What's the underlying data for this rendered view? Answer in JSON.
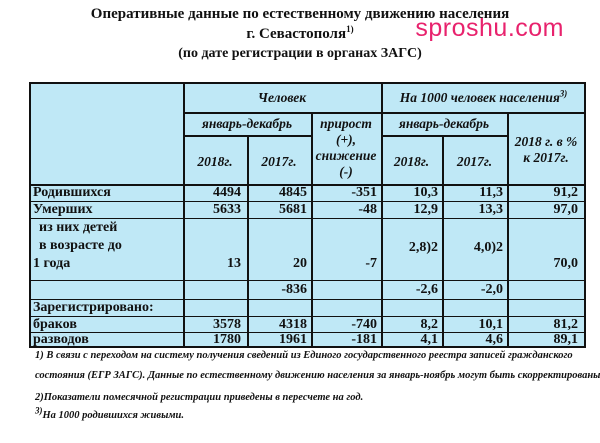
{
  "header": {
    "title_line1": "Оперативные данные по естественному движению населения",
    "title_line2": "г. Севастополя",
    "title_line2_sup": "1)",
    "title_line3": "(по дате регистрации в органах ЗАГС)",
    "watermark": "sproshu.com"
  },
  "table": {
    "head": {
      "persons": "Человек",
      "per1000": "На 1000 человек населения",
      "per1000_sup": "3)",
      "jan_dec_left": "январь-декабрь",
      "growth": "прирост (+), снижение (-)",
      "jan_dec_right": "январь-декабрь",
      "pct": "2018 г. в % к 2017г.",
      "y2018_left": "2018г.",
      "y2017_left": "2017г.",
      "y2018_right": "2018г.",
      "y2017_right": "2017г."
    },
    "rows": {
      "births": {
        "label": "Родившихся",
        "c1": "4494",
        "c2": "4845",
        "c3": "-351",
        "c4": "10,3",
        "c5": "11,3",
        "c6": "91,2"
      },
      "deaths": {
        "label": "Умерших",
        "c1": "5633",
        "c2": "5681",
        "c3": "-48",
        "c4": "12,9",
        "c5": "13,3",
        "c6": "97,0"
      },
      "infant": {
        "label1": "из них детей",
        "label2": "в возрасте до",
        "label3": "1 года",
        "c1": "13",
        "c2": "20",
        "c3": "-7",
        "c4": "2,8)2",
        "c5": "4,0)2",
        "c6": "70,0"
      },
      "natural": {
        "c2": "-836",
        "c4": "-2,6",
        "c5": "-2,0"
      },
      "registered": {
        "label": "Зарегистрировано:"
      },
      "marriages": {
        "label": "браков",
        "c1": "3578",
        "c2": "4318",
        "c3": "-740",
        "c4": "8,2",
        "c5": "10,1",
        "c6": "81,2"
      },
      "divorces": {
        "label": "разводов",
        "c1": "1780",
        "c2": "1961",
        "c3": "-181",
        "c4": "4,1",
        "c5": "4,6",
        "c6": "89,1"
      }
    }
  },
  "footnotes": {
    "fn1_line1": "1)  В связи с переходом на систему получения сведений из Единого государственного реестра записей гражданского",
    "fn1_line2": "состояния (ЕГР ЗАГС). Данные по естественному движению населения за январь-ноябрь могут быть скорректированы.",
    "fn2": "2)Показатели помесячной регистрации приведены в пересчете на год.",
    "fn3_sup": "3)",
    "fn3": "На 1000 родившихся живыми."
  }
}
